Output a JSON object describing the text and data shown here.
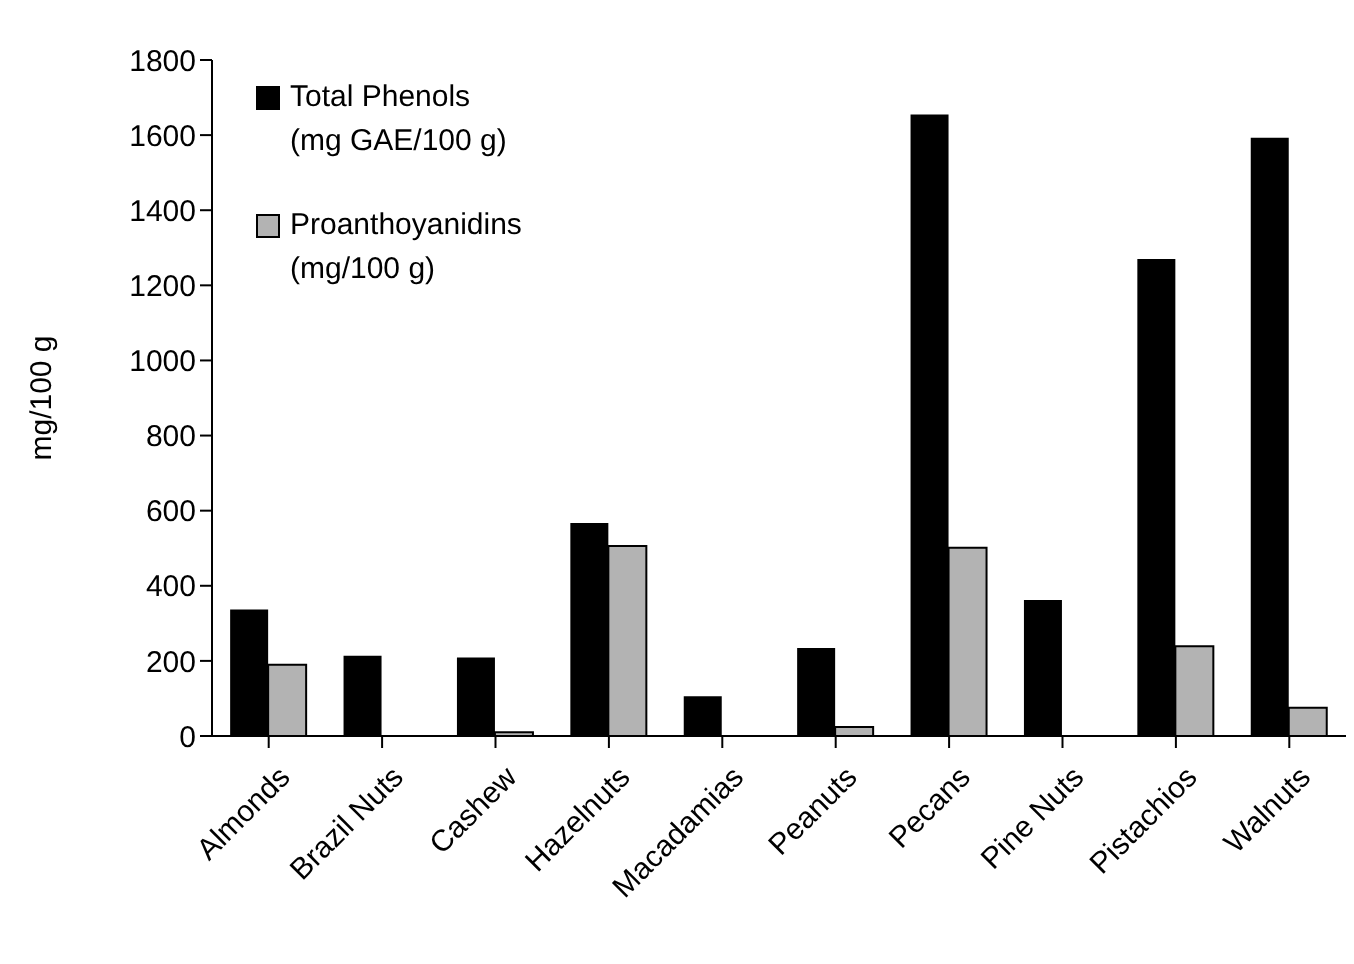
{
  "chart_data": {
    "type": "bar",
    "ylabel": "mg/100 g",
    "categories": [
      "Almonds",
      "Brazil Nuts",
      "Cashew",
      "Hazelnuts",
      "Macadamias",
      "Peanuts",
      "Pecans",
      "Pine Nuts",
      "Pistachios",
      "Walnuts"
    ],
    "series": [
      {
        "name": "Total Phenols\n(mg GAE/100 g)",
        "color": "#000000",
        "values": [
          337,
          214,
          209,
          567,
          106,
          234,
          1655,
          362,
          1270,
          1593
        ]
      },
      {
        "name": "Proanthoyanidins\n(mg/100 g)",
        "color": "#b3b3b3",
        "values": [
          190,
          null,
          10,
          506,
          null,
          24,
          501,
          null,
          239,
          75
        ]
      }
    ],
    "ylim": [
      0,
      1800
    ],
    "yticks": [
      0,
      200,
      400,
      600,
      800,
      1000,
      1200,
      1400,
      1600,
      1800
    ],
    "grid": false,
    "legend": "top left"
  }
}
